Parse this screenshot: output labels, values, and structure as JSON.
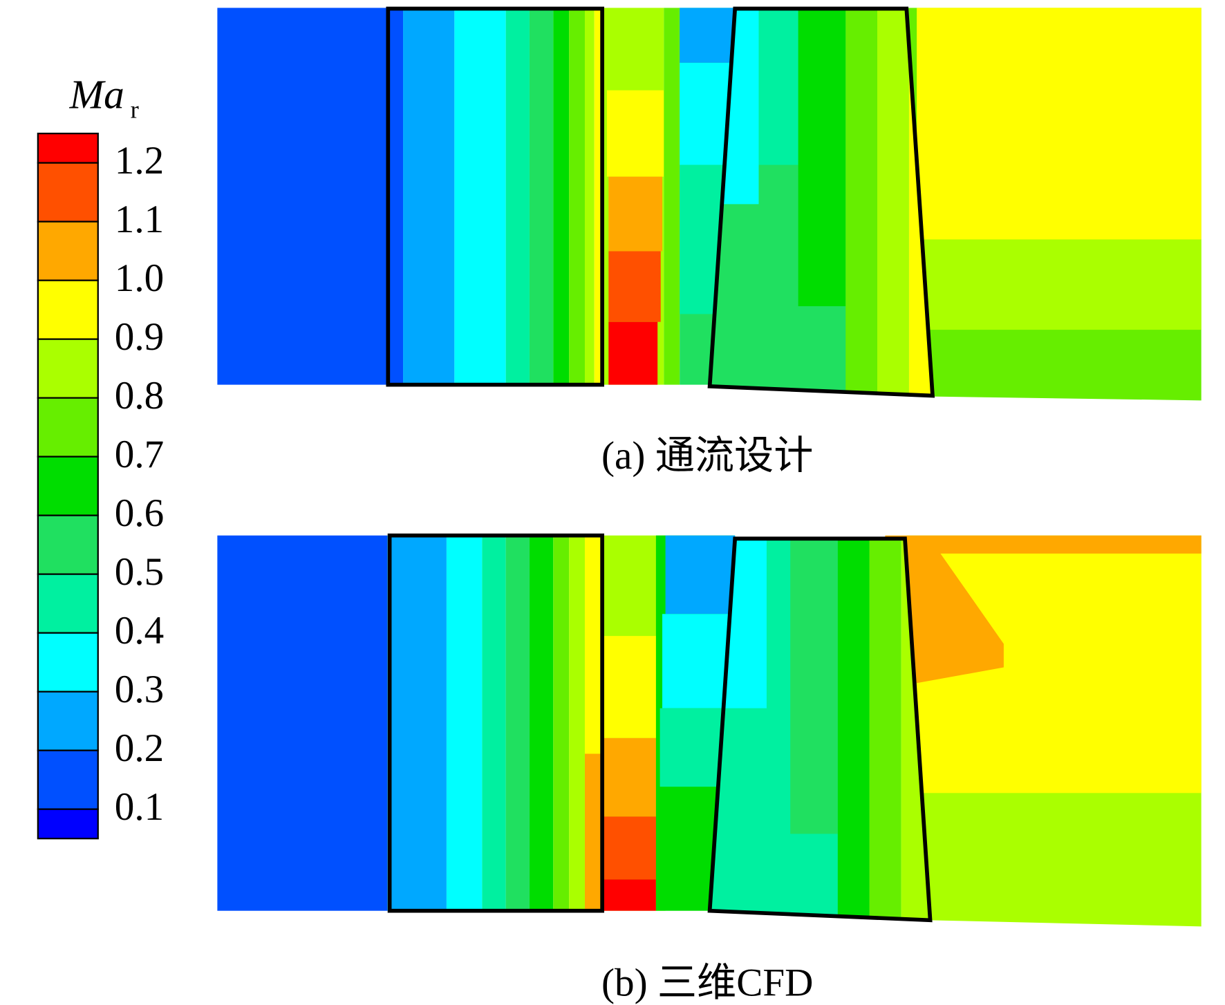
{
  "legend": {
    "title": "Ma",
    "subscript": "r",
    "labels": [
      "1.2",
      "1.1",
      "1.0",
      "0.9",
      "0.8",
      "0.7",
      "0.6",
      "0.5",
      "0.4",
      "0.3",
      "0.2",
      "0.1"
    ],
    "colors": [
      "#ff0000",
      "#ff5000",
      "#ffa800",
      "#ffff00",
      "#aaff00",
      "#66ee00",
      "#00dd00",
      "#20e060",
      "#00f0a0",
      "#00ffff",
      "#00a8ff",
      "#0050ff",
      "#0000ff"
    ]
  },
  "panels": [
    {
      "caption": "(a) 通流设计"
    },
    {
      "caption": "(b) 三维CFD"
    }
  ]
}
